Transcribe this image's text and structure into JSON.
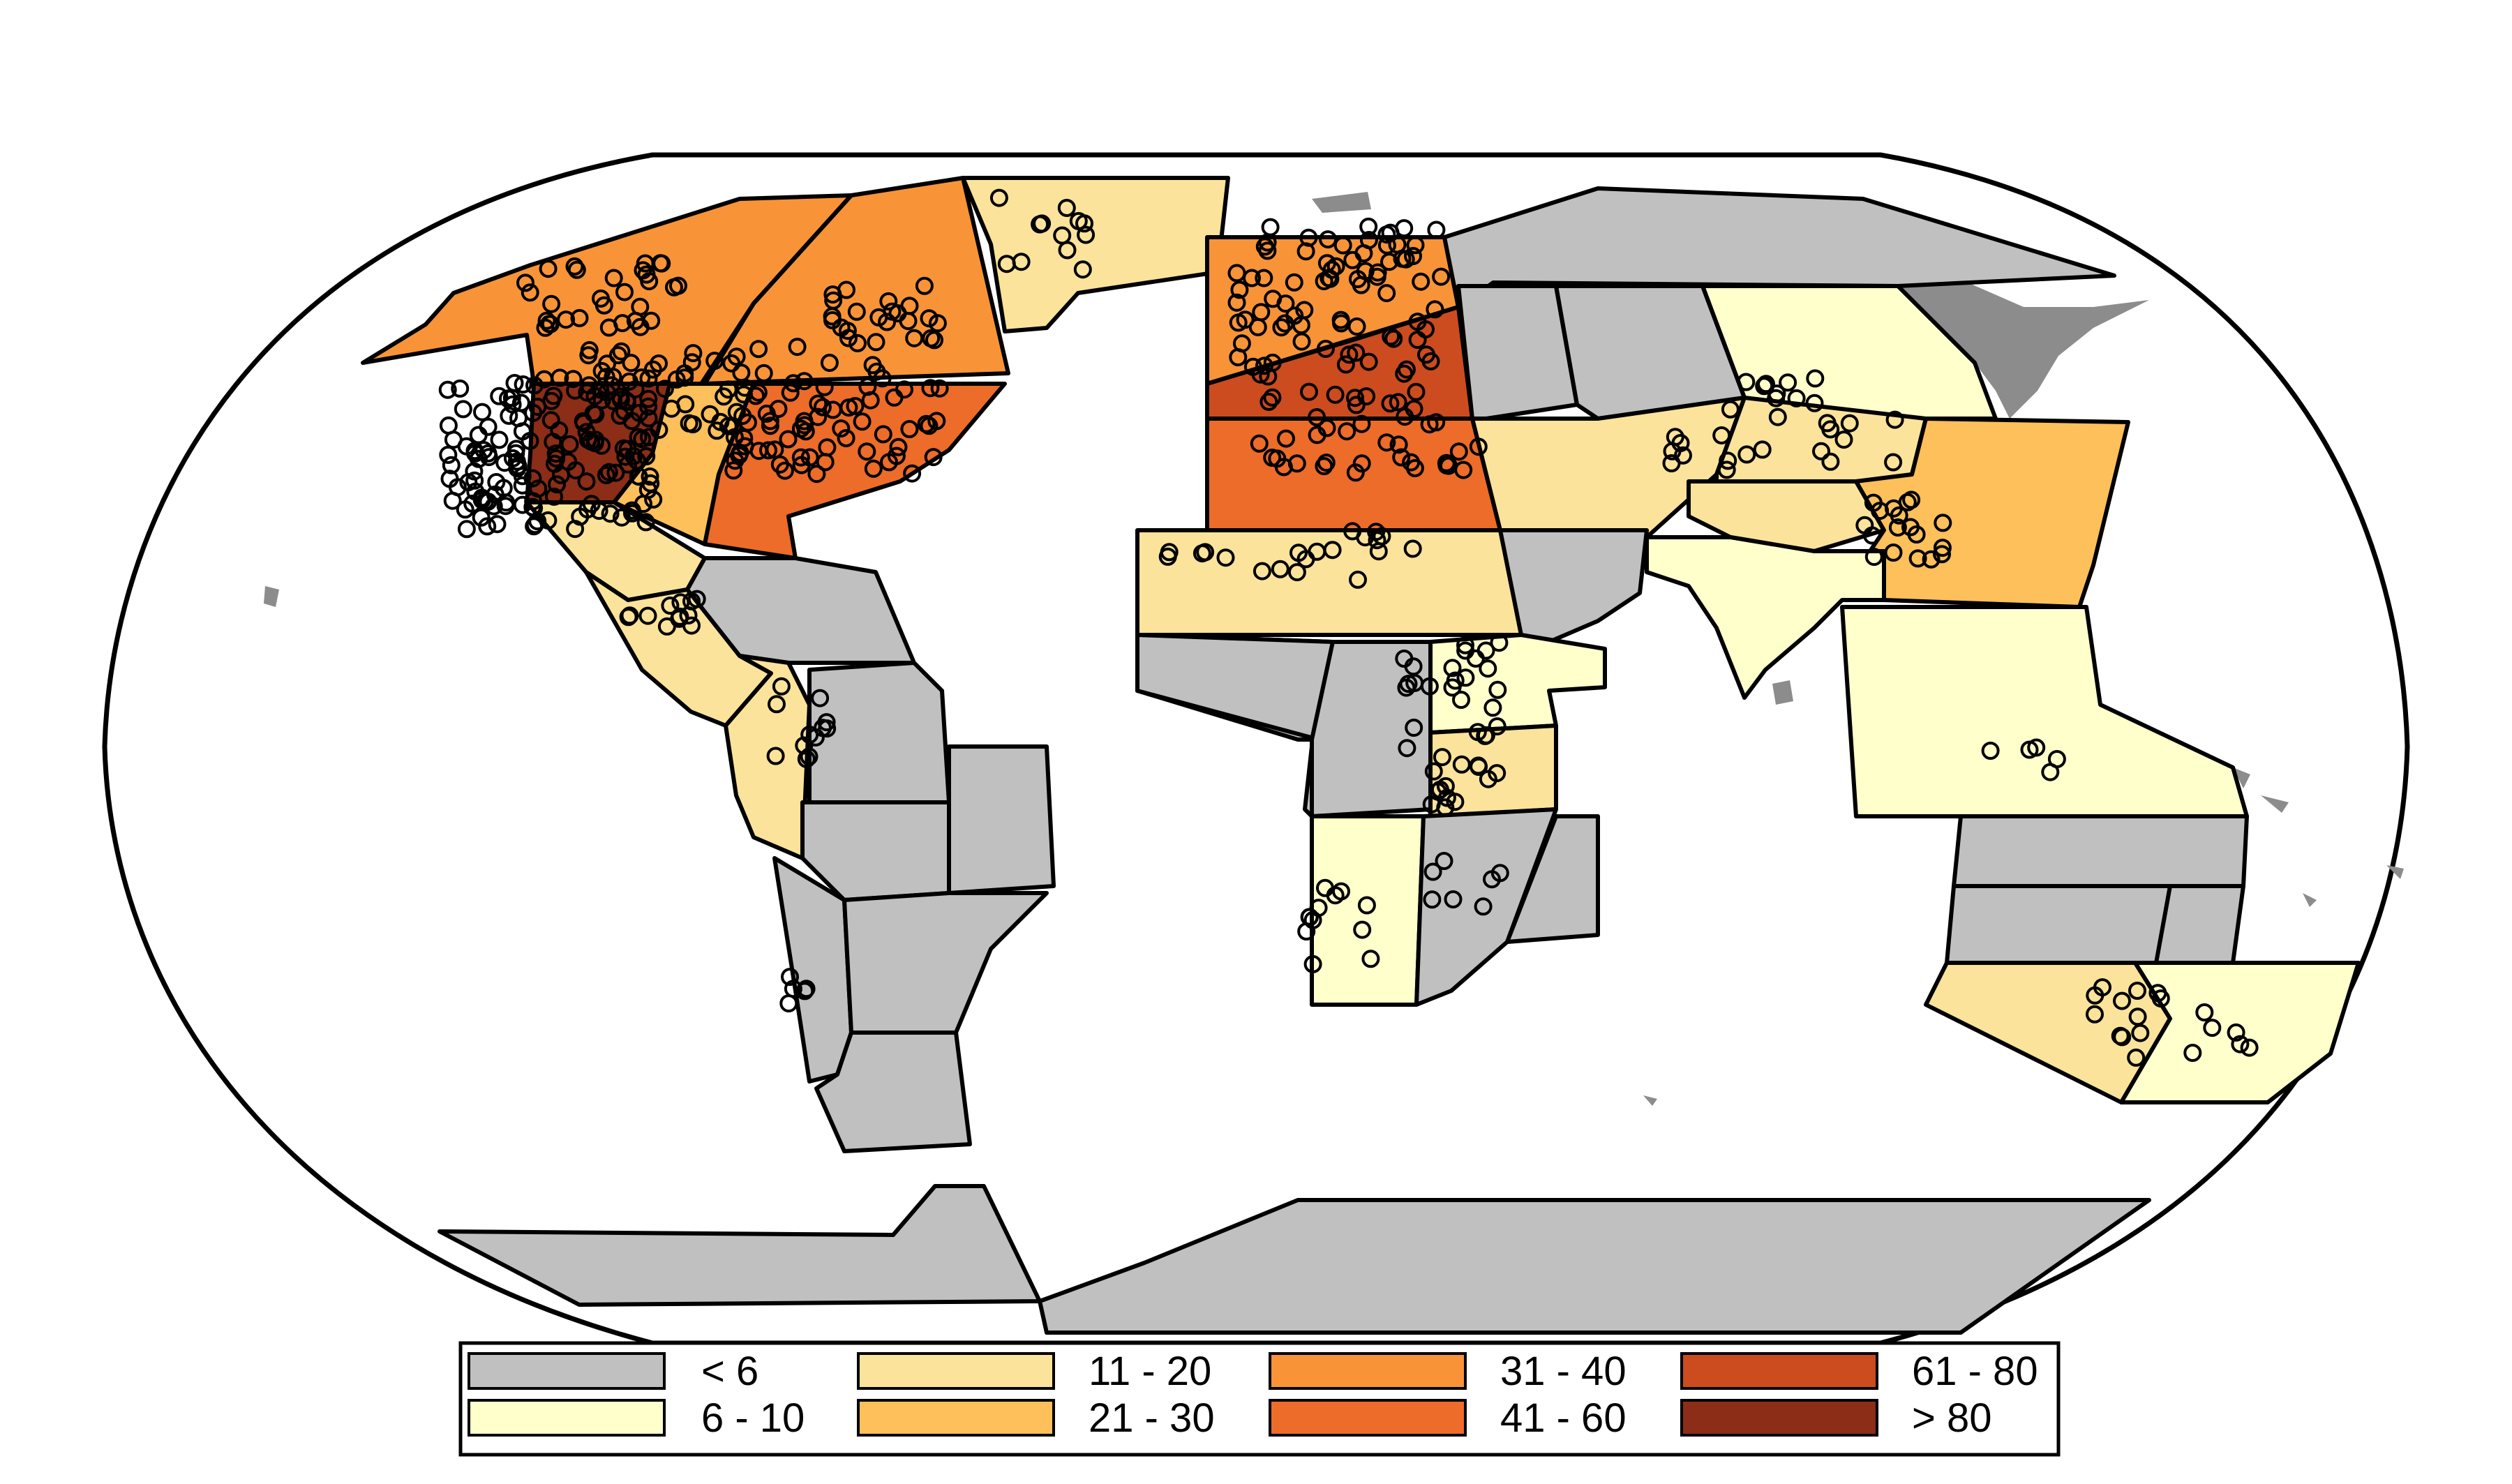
{
  "legend": {
    "classes": [
      {
        "key": "c1",
        "label": "< 6",
        "color": "#c0c0c0"
      },
      {
        "key": "c2",
        "label": "6 - 10",
        "color": "#ffffcc"
      },
      {
        "key": "c3",
        "label": "11 - 20",
        "color": "#fbe39b"
      },
      {
        "key": "c4",
        "label": "21 - 30",
        "color": "#fdc05a"
      },
      {
        "key": "c5",
        "label": "31 - 40",
        "color": "#f89437"
      },
      {
        "key": "c6",
        "label": "41 - 60",
        "color": "#ed6c29"
      },
      {
        "key": "c7",
        "label": "61 - 80",
        "color": "#cc4c1f"
      },
      {
        "key": "c8",
        "label": "> 80",
        "color": "#8c2d17"
      }
    ]
  },
  "colors": {
    "land_outside_regions": "#8c8c8c",
    "outline": "#000000",
    "ocean": "#ffffff"
  }
}
